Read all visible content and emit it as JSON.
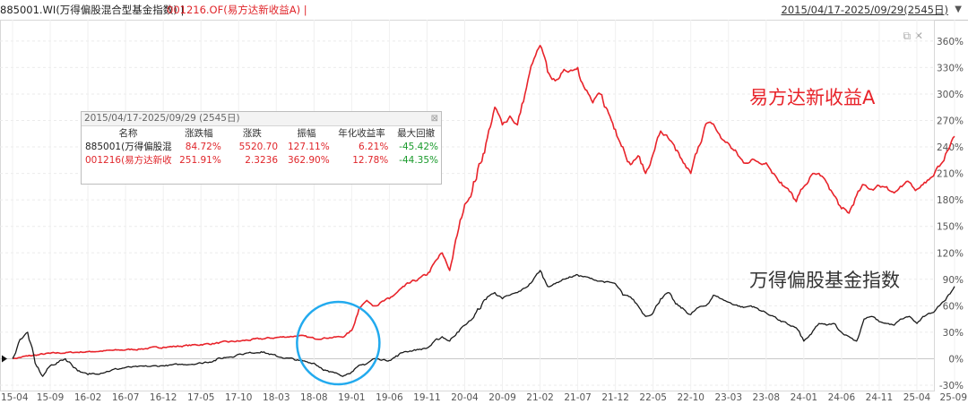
{
  "header": {
    "index_title": "885001.WI(万得偏股混合型基金指数) |",
    "fund_title": "001216.OF(易方达新收益A) |",
    "date_range": "2015/04/17-2025/09/29(2545日)",
    "dropdown_icon": "triangle-down-icon"
  },
  "stats_table": {
    "title": "2015/04/17-2025/09/29 (2545日)",
    "close_icon": "close-icon",
    "columns": [
      "名称",
      "涨跌幅",
      "涨跌",
      "振幅",
      "年化收益率",
      "最大回撤"
    ],
    "rows": [
      {
        "name": "885001(万得偏股混",
        "change_pct": "84.72%",
        "change": "5520.70",
        "amplitude": "127.11%",
        "annual_return": "6.21%",
        "max_drawdown": "-45.42%"
      },
      {
        "name": "001216(易方达新收",
        "change_pct": "251.91%",
        "change": "2.3236",
        "amplitude": "362.90%",
        "annual_return": "12.78%",
        "max_drawdown": "-44.35%"
      }
    ]
  },
  "colors": {
    "fund": "#e8232a",
    "index": "#1a1a1a",
    "circle": "#22aaee",
    "positive": "#e0262b",
    "negative": "#1a9a2c"
  },
  "chart_data": {
    "type": "line",
    "y_axis": {
      "unit": "%",
      "range": [
        -30,
        370
      ],
      "ticks": [
        "360%",
        "330%",
        "300%",
        "270%",
        "240%",
        "210%",
        "180%",
        "150%",
        "120%",
        "90%",
        "60%",
        "30%",
        "0%",
        "-30%"
      ],
      "side": "right",
      "grid": true
    },
    "x_axis": {
      "ticks": [
        "15-04",
        "15-09",
        "16-02",
        "16-07",
        "16-12",
        "17-05",
        "17-10",
        "18-03",
        "18-08",
        "19-01",
        "19-06",
        "19-11",
        "20-04",
        "20-09",
        "21-02",
        "21-07",
        "21-12",
        "22-05",
        "22-10",
        "23-03",
        "23-08",
        "24-01",
        "24-06",
        "24-11",
        "25-04",
        "25-09"
      ]
    },
    "annotations": [
      {
        "type": "text",
        "text": "易方达新收益A",
        "series": "fund"
      },
      {
        "type": "text",
        "text": "万得偏股基金指数",
        "series": "index"
      },
      {
        "type": "circle",
        "around": "19-01"
      }
    ],
    "series": [
      {
        "key": "fund",
        "name": "001216.OF(易方达新收益A)",
        "color": "#e8232a",
        "points": [
          [
            "15-04",
            0
          ],
          [
            "15-06",
            3
          ],
          [
            "15-09",
            6
          ],
          [
            "16-02",
            8
          ],
          [
            "16-07",
            10
          ],
          [
            "16-12",
            13
          ],
          [
            "17-05",
            16
          ],
          [
            "17-10",
            20
          ],
          [
            "18-03",
            24
          ],
          [
            "18-06",
            26
          ],
          [
            "18-08",
            23
          ],
          [
            "18-12",
            25
          ],
          [
            "19-01",
            32
          ],
          [
            "19-02",
            58
          ],
          [
            "19-03",
            66
          ],
          [
            "19-04",
            60
          ],
          [
            "19-06",
            68
          ],
          [
            "19-08",
            82
          ],
          [
            "19-11",
            95
          ],
          [
            "20-01",
            120
          ],
          [
            "20-02",
            100
          ],
          [
            "20-03",
            140
          ],
          [
            "20-04",
            175
          ],
          [
            "20-05",
            190
          ],
          [
            "20-07",
            250
          ],
          [
            "20-08",
            285
          ],
          [
            "20-09",
            265
          ],
          [
            "20-10",
            275
          ],
          [
            "20-11",
            265
          ],
          [
            "20-12",
            300
          ],
          [
            "21-01",
            335
          ],
          [
            "21-02",
            355
          ],
          [
            "21-03",
            325
          ],
          [
            "21-04",
            315
          ],
          [
            "21-05",
            325
          ],
          [
            "21-07",
            330
          ],
          [
            "21-08",
            305
          ],
          [
            "21-09",
            290
          ],
          [
            "21-10",
            300
          ],
          [
            "21-12",
            260
          ],
          [
            "22-01",
            240
          ],
          [
            "22-02",
            220
          ],
          [
            "22-03",
            230
          ],
          [
            "22-04",
            210
          ],
          [
            "22-05",
            232
          ],
          [
            "22-06",
            258
          ],
          [
            "22-07",
            250
          ],
          [
            "22-08",
            236
          ],
          [
            "22-09",
            222
          ],
          [
            "22-10",
            210
          ],
          [
            "22-11",
            240
          ],
          [
            "22-12",
            266
          ],
          [
            "23-01",
            266
          ],
          [
            "23-02",
            250
          ],
          [
            "23-03",
            244
          ],
          [
            "23-05",
            222
          ],
          [
            "23-06",
            225
          ],
          [
            "23-08",
            222
          ],
          [
            "23-09",
            210
          ],
          [
            "23-10",
            200
          ],
          [
            "23-12",
            178
          ],
          [
            "24-01",
            195
          ],
          [
            "24-02",
            208
          ],
          [
            "24-03",
            210
          ],
          [
            "24-04",
            200
          ],
          [
            "24-05",
            185
          ],
          [
            "24-06",
            170
          ],
          [
            "24-07",
            165
          ],
          [
            "24-08",
            185
          ],
          [
            "24-09",
            197
          ],
          [
            "24-10",
            192
          ],
          [
            "24-11",
            196
          ],
          [
            "24-12",
            195
          ],
          [
            "25-01",
            188
          ],
          [
            "25-02",
            195
          ],
          [
            "25-03",
            200
          ],
          [
            "25-04",
            192
          ],
          [
            "25-05",
            200
          ],
          [
            "25-06",
            206
          ],
          [
            "25-07",
            218
          ],
          [
            "25-08",
            235
          ],
          [
            "25-09",
            252
          ]
        ]
      },
      {
        "key": "index",
        "name": "885001.WI(万得偏股混合型基金指数)",
        "color": "#1a1a1a",
        "points": [
          [
            "15-04",
            0
          ],
          [
            "15-05",
            22
          ],
          [
            "15-06",
            30
          ],
          [
            "15-07",
            -5
          ],
          [
            "15-08",
            -20
          ],
          [
            "15-09",
            -8
          ],
          [
            "15-11",
            0
          ],
          [
            "16-01",
            -15
          ],
          [
            "16-02",
            -18
          ],
          [
            "16-07",
            -10
          ],
          [
            "16-12",
            -8
          ],
          [
            "17-05",
            -5
          ],
          [
            "17-10",
            5
          ],
          [
            "18-01",
            8
          ],
          [
            "18-03",
            3
          ],
          [
            "18-06",
            -2
          ],
          [
            "18-08",
            -5
          ],
          [
            "18-10",
            -15
          ],
          [
            "18-12",
            -19
          ],
          [
            "19-01",
            -15
          ],
          [
            "19-04",
            0
          ],
          [
            "19-06",
            -2
          ],
          [
            "19-08",
            8
          ],
          [
            "19-11",
            12
          ],
          [
            "20-01",
            25
          ],
          [
            "20-02",
            20
          ],
          [
            "20-03",
            30
          ],
          [
            "20-04",
            38
          ],
          [
            "20-05",
            45
          ],
          [
            "20-07",
            70
          ],
          [
            "20-08",
            75
          ],
          [
            "20-09",
            68
          ],
          [
            "20-10",
            72
          ],
          [
            "20-11",
            75
          ],
          [
            "20-12",
            80
          ],
          [
            "21-01",
            88
          ],
          [
            "21-02",
            100
          ],
          [
            "21-03",
            82
          ],
          [
            "21-04",
            85
          ],
          [
            "21-05",
            90
          ],
          [
            "21-07",
            95
          ],
          [
            "21-09",
            90
          ],
          [
            "21-10",
            88
          ],
          [
            "21-12",
            85
          ],
          [
            "22-01",
            72
          ],
          [
            "22-02",
            70
          ],
          [
            "22-03",
            60
          ],
          [
            "22-04",
            48
          ],
          [
            "22-05",
            52
          ],
          [
            "22-06",
            68
          ],
          [
            "22-07",
            75
          ],
          [
            "22-08",
            62
          ],
          [
            "22-10",
            50
          ],
          [
            "22-11",
            58
          ],
          [
            "22-12",
            60
          ],
          [
            "23-01",
            72
          ],
          [
            "23-02",
            68
          ],
          [
            "23-03",
            64
          ],
          [
            "23-05",
            58
          ],
          [
            "23-06",
            60
          ],
          [
            "23-08",
            52
          ],
          [
            "23-09",
            48
          ],
          [
            "23-10",
            42
          ],
          [
            "23-12",
            35
          ],
          [
            "24-01",
            20
          ],
          [
            "24-02",
            28
          ],
          [
            "24-03",
            40
          ],
          [
            "24-04",
            38
          ],
          [
            "24-05",
            40
          ],
          [
            "24-06",
            30
          ],
          [
            "24-07",
            25
          ],
          [
            "24-08",
            20
          ],
          [
            "24-09",
            45
          ],
          [
            "24-10",
            48
          ],
          [
            "24-11",
            42
          ],
          [
            "24-12",
            40
          ],
          [
            "25-01",
            38
          ],
          [
            "25-02",
            45
          ],
          [
            "25-03",
            48
          ],
          [
            "25-04",
            40
          ],
          [
            "25-05",
            48
          ],
          [
            "25-06",
            52
          ],
          [
            "25-07",
            60
          ],
          [
            "25-08",
            70
          ],
          [
            "25-09",
            82
          ]
        ]
      }
    ]
  }
}
